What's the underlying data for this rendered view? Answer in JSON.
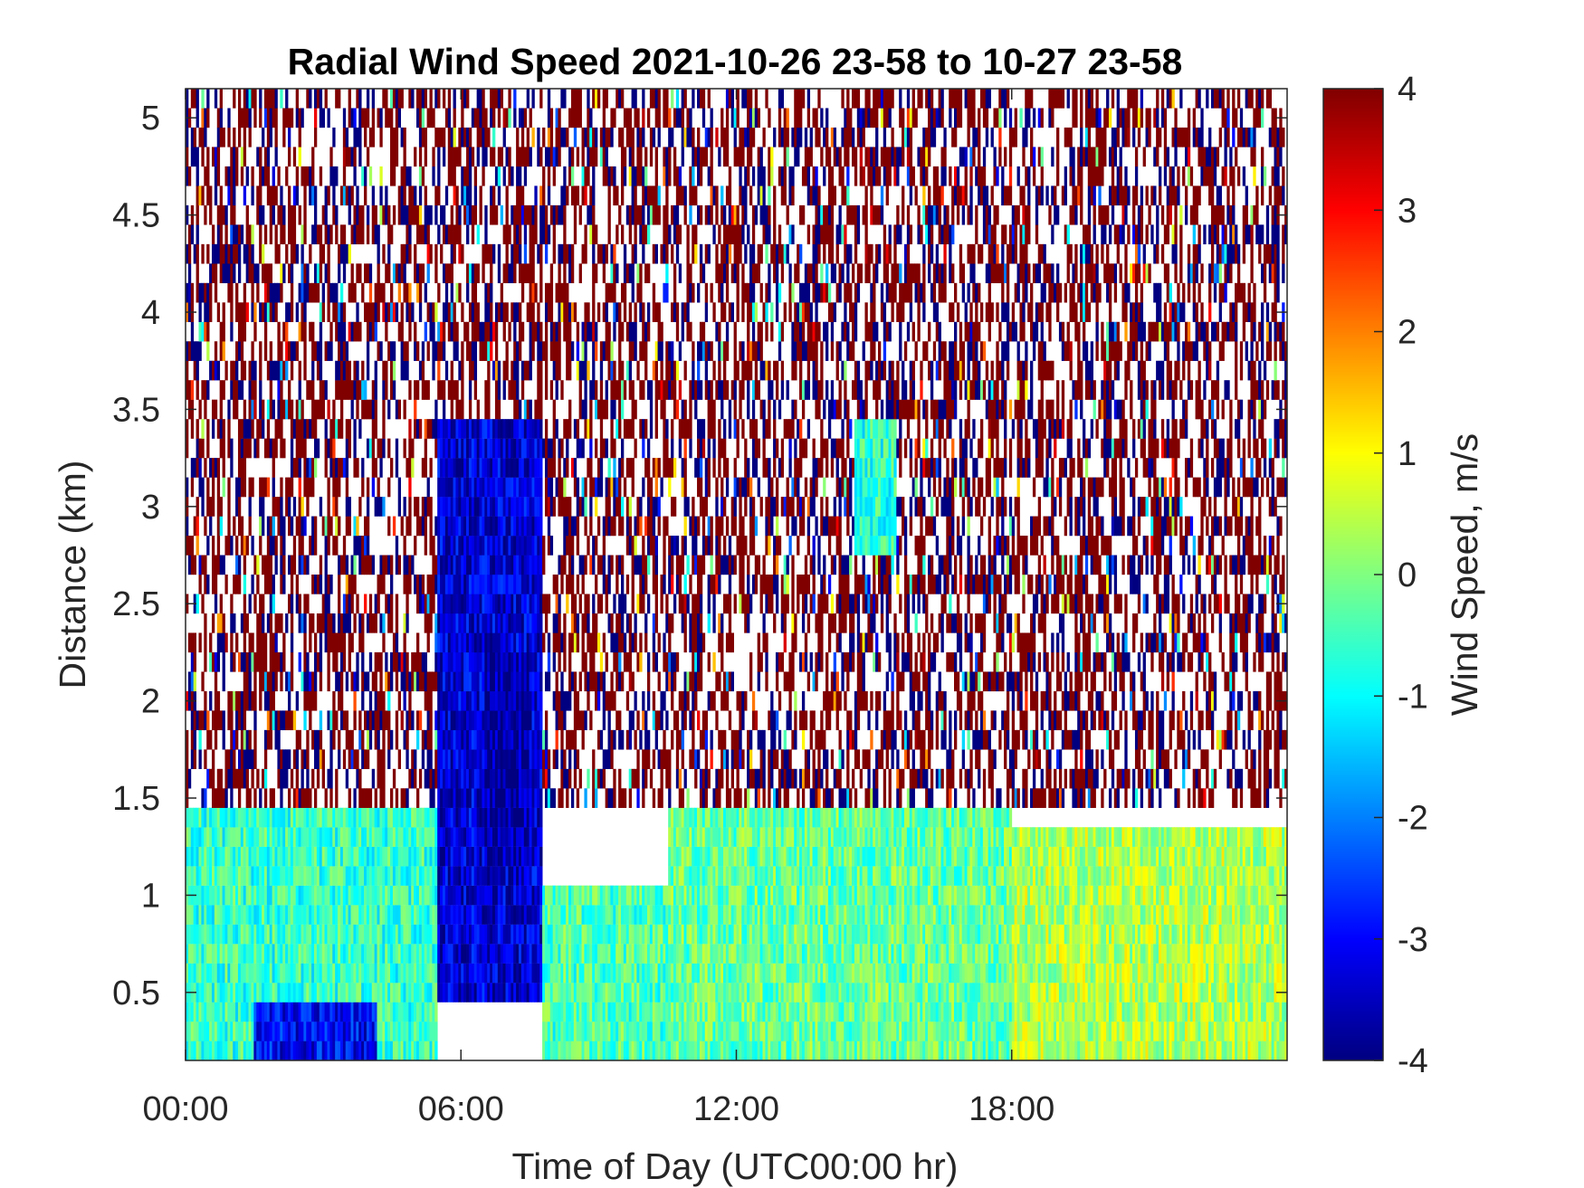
{
  "chart_data": {
    "type": "heatmap",
    "title": "Radial Wind Speed 2021-10-26 23-58 to 10-27 23-58",
    "xlabel": "Time of Day (UTC00:00 hr)",
    "ylabel": "Distance (km)",
    "x_unit": "hours of day (UTC)",
    "xlim": [
      0,
      24
    ],
    "ylim": [
      0.15,
      5.15
    ],
    "x_ticks": [
      {
        "value": 0,
        "label": "00:00"
      },
      {
        "value": 6,
        "label": "06:00"
      },
      {
        "value": 12,
        "label": "12:00"
      },
      {
        "value": 18,
        "label": "18:00"
      }
    ],
    "y_ticks": [
      {
        "value": 0.5,
        "label": "0.5"
      },
      {
        "value": 1,
        "label": "1"
      },
      {
        "value": 1.5,
        "label": "1.5"
      },
      {
        "value": 2,
        "label": "2"
      },
      {
        "value": 2.5,
        "label": "2.5"
      },
      {
        "value": 3,
        "label": "3"
      },
      {
        "value": 3.5,
        "label": "3.5"
      },
      {
        "value": 4,
        "label": "4"
      },
      {
        "value": 4.5,
        "label": "4.5"
      },
      {
        "value": 5,
        "label": "5"
      }
    ],
    "colorbar": {
      "label": "Wind Speed, m/s",
      "colormap": "jet",
      "clim": [
        -4,
        4
      ],
      "ticks": [
        {
          "value": 4,
          "label": "4"
        },
        {
          "value": 3,
          "label": "3"
        },
        {
          "value": 2,
          "label": "2"
        },
        {
          "value": 1,
          "label": "1"
        },
        {
          "value": 0,
          "label": "0"
        },
        {
          "value": -1,
          "label": "-1"
        },
        {
          "value": -2,
          "label": "-2"
        },
        {
          "value": -3,
          "label": "-3"
        },
        {
          "value": -4,
          "label": "-4"
        }
      ]
    },
    "grid": false,
    "regions": [
      {
        "x_range": [
          0,
          24
        ],
        "y_range": [
          1.5,
          5.15
        ],
        "pattern": "noise",
        "speed_range": [
          -4,
          4
        ]
      },
      {
        "x_range": [
          0,
          5.5
        ],
        "y_range": [
          0.15,
          1.5
        ],
        "mean_speed": -0.6
      },
      {
        "x_range": [
          1.5,
          4.2
        ],
        "y_range": [
          0.15,
          0.45
        ],
        "mean_speed": -3.0
      },
      {
        "x_range": [
          5.5,
          7.8
        ],
        "y_range": [
          0.5,
          3.5
        ],
        "mean_speed": -3.3
      },
      {
        "x_range": [
          6.5,
          7.5
        ],
        "y_range": [
          1.2,
          2.2
        ],
        "mean_speed": -3.8
      },
      {
        "x_range": [
          7.8,
          10.5
        ],
        "y_range": [
          0.15,
          1.1
        ],
        "mean_speed": -0.4
      },
      {
        "x_range": [
          10.5,
          18
        ],
        "y_range": [
          0.15,
          1.45
        ],
        "mean_speed": -0.2
      },
      {
        "x_range": [
          14.6,
          15.5
        ],
        "y_range": [
          2.8,
          3.5
        ],
        "mean_speed": -0.7
      },
      {
        "x_range": [
          18,
          24
        ],
        "y_range": [
          0.15,
          1.35
        ],
        "mean_speed": 0.4
      }
    ]
  }
}
